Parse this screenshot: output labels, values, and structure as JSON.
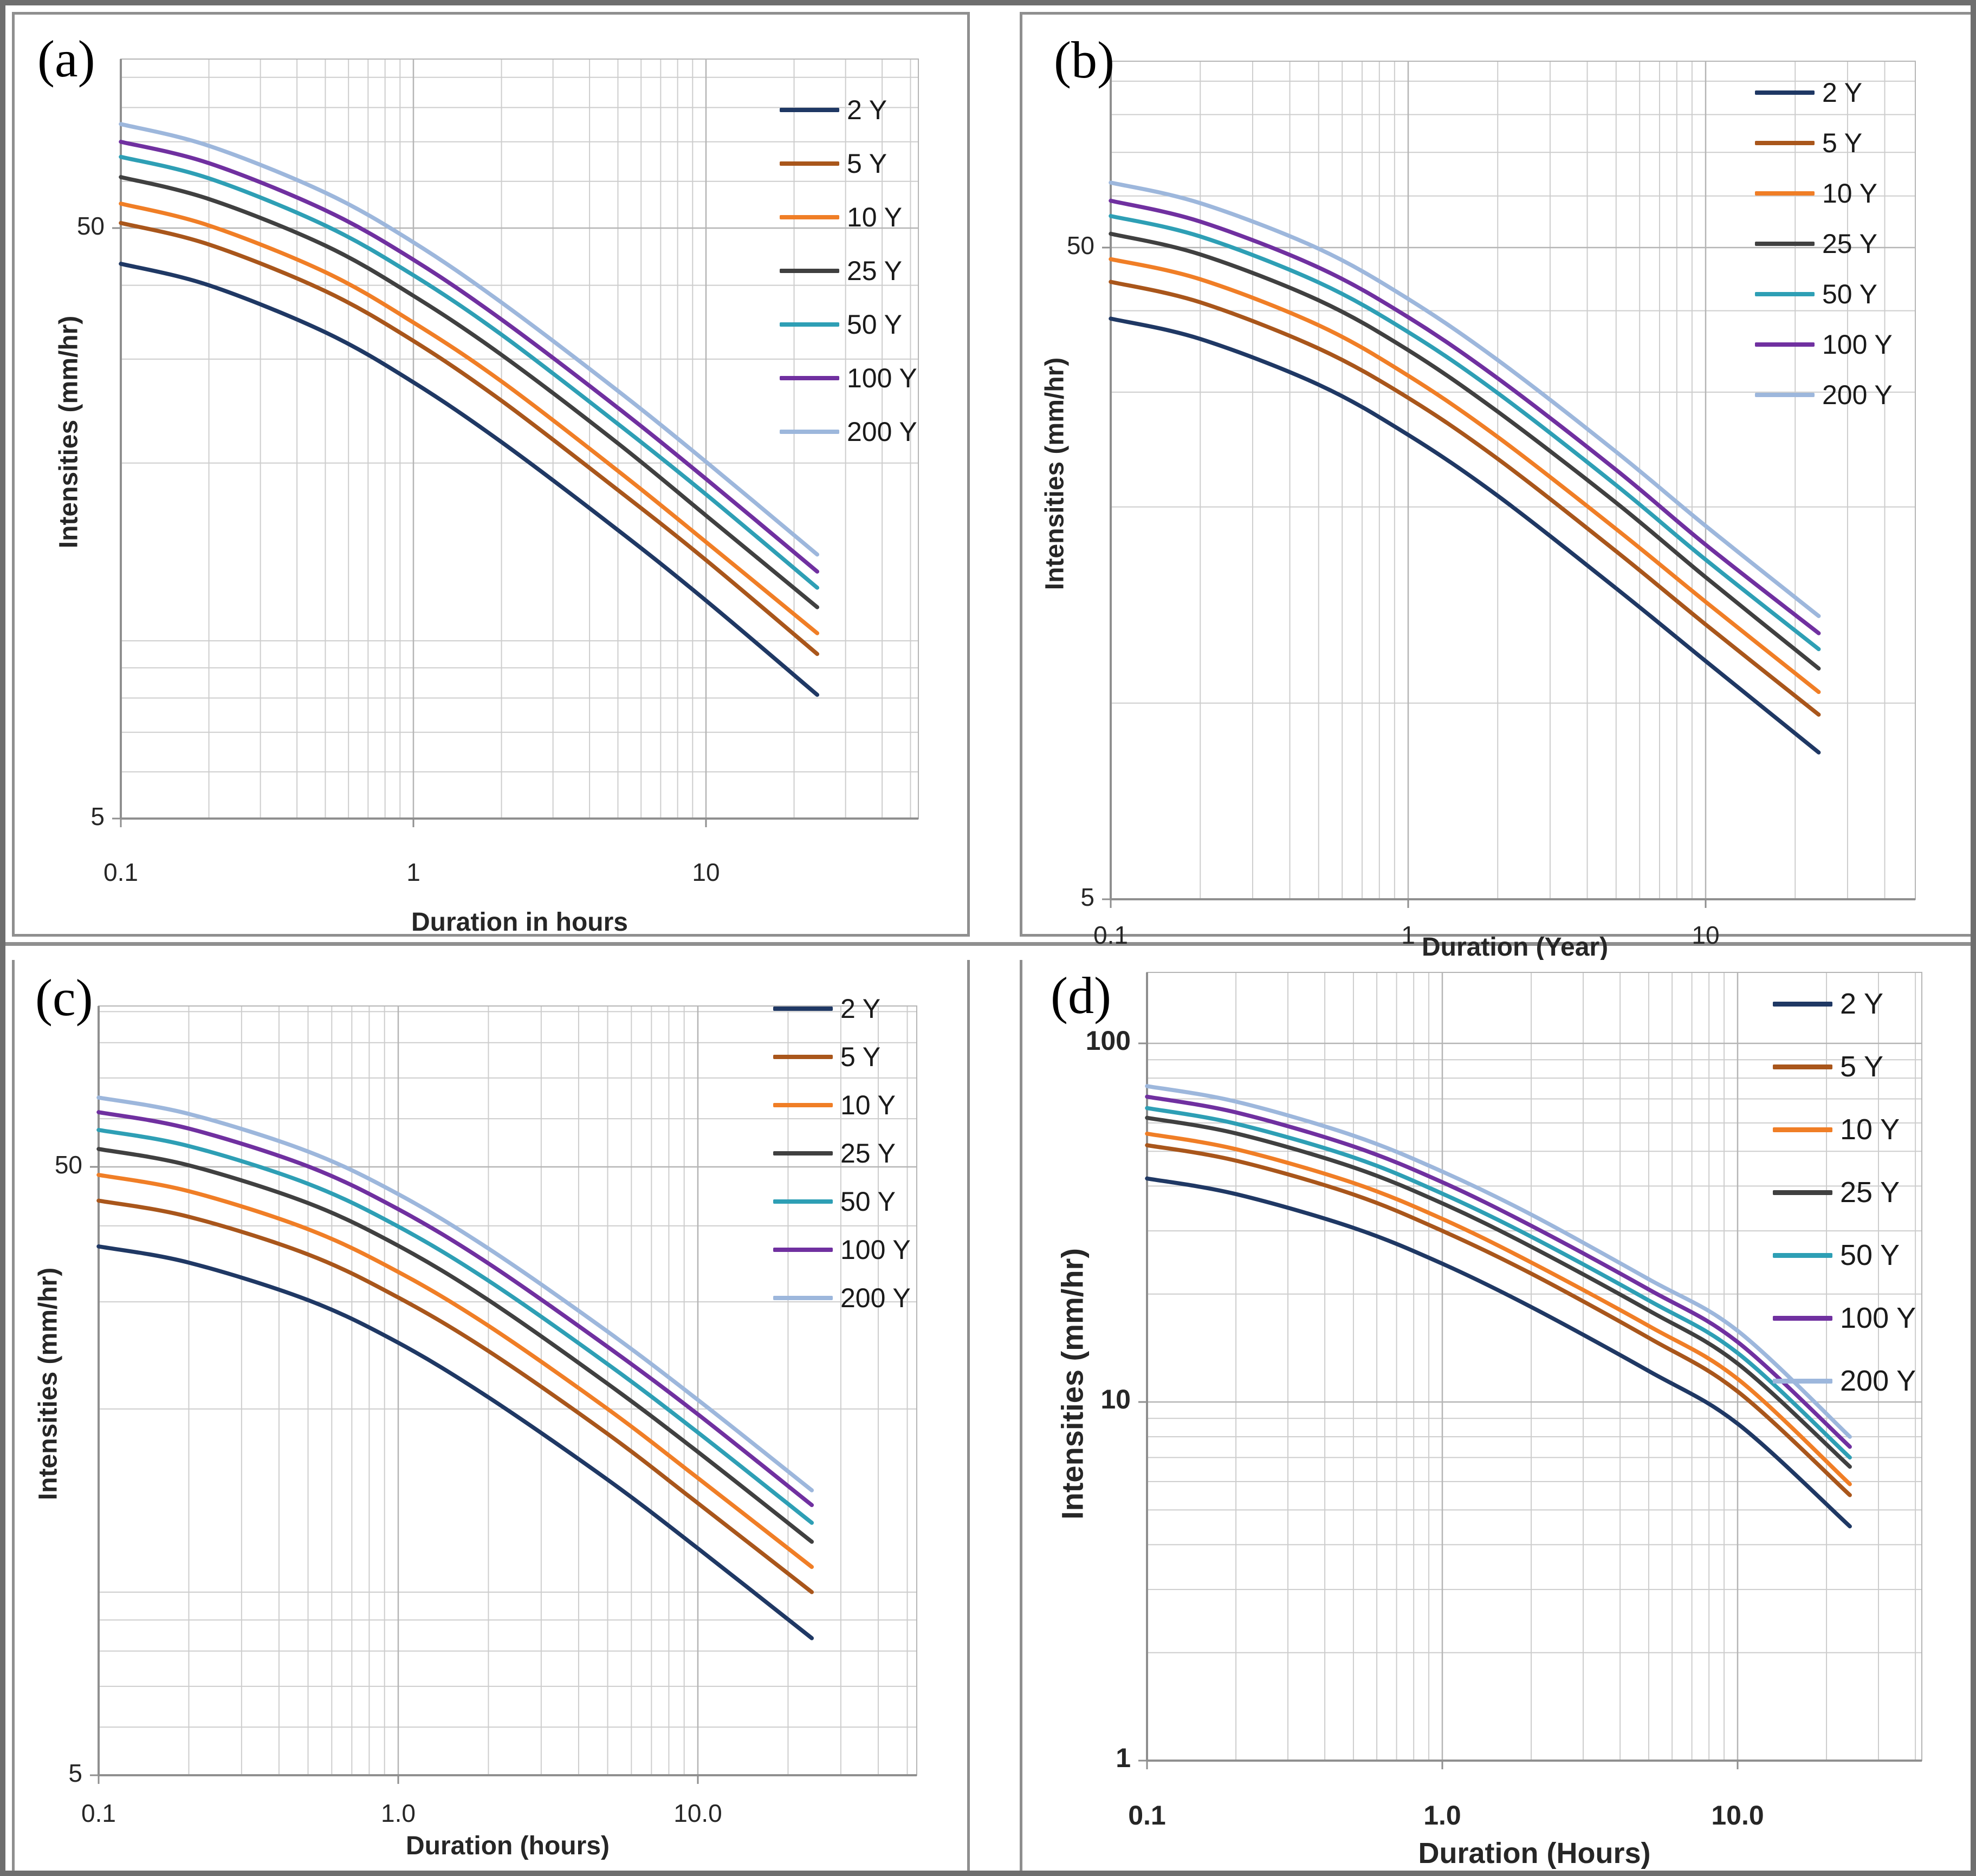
{
  "figure": {
    "background": "#ffffff",
    "frame_color": "#6e6e6e",
    "panel_border_color": "#8f8f8f",
    "grid_minor_color": "#cdcdcd",
    "grid_major_color": "#b5b5b5",
    "axis_color": "#8f8f8f",
    "text_color": "#262626"
  },
  "legend_labels": [
    "2 Y",
    "5 Y",
    "10 Y",
    "25 Y",
    "50 Y",
    "100 Y",
    "200 Y"
  ],
  "series_colors": [
    "#1F3864",
    "#A9561B",
    "#F07E26",
    "#404040",
    "#2E9FB5",
    "#7030A0",
    "#9DB7DC"
  ],
  "chart_data": [
    {
      "type": "line",
      "panel_label": "(a)",
      "xlabel": "Duration in hours",
      "ylabel": "Intensities (mm/hr)",
      "x_tick_labels": [
        "0.1",
        "1",
        "10"
      ],
      "x_tick_values": [
        0.1,
        1,
        10
      ],
      "y_tick_labels": [
        "5",
        "50"
      ],
      "y_tick_values": [
        5,
        50
      ],
      "xlim": [
        0.1,
        53
      ],
      "ylim": [
        5,
        97
      ],
      "log_x": true,
      "log_y": true,
      "grid": true,
      "legend_position": "top-right",
      "x": [
        0.1,
        0.2,
        0.5,
        1,
        2,
        5,
        10,
        24
      ],
      "series": [
        {
          "name": "2 Y",
          "color": "#1F3864",
          "values": [
            43.5,
            40.0,
            33.3,
            27.4,
            21.7,
            15.4,
            11.7,
            8.1
          ]
        },
        {
          "name": "5 Y",
          "color": "#A9561B",
          "values": [
            51.0,
            46.9,
            39.1,
            32.2,
            25.5,
            18.0,
            13.7,
            9.5
          ]
        },
        {
          "name": "10 Y",
          "color": "#F07E26",
          "values": [
            55.0,
            50.5,
            42.1,
            34.6,
            27.5,
            19.4,
            14.7,
            10.3
          ]
        },
        {
          "name": "25 Y",
          "color": "#404040",
          "values": [
            61.0,
            56.0,
            46.7,
            38.4,
            30.5,
            21.6,
            16.3,
            11.4
          ]
        },
        {
          "name": "50 Y",
          "color": "#2E9FB5",
          "values": [
            66.0,
            60.7,
            50.5,
            41.6,
            33.0,
            23.3,
            17.7,
            12.3
          ]
        },
        {
          "name": "100 Y",
          "color": "#7030A0",
          "values": [
            70.0,
            64.4,
            53.6,
            44.2,
            35.0,
            24.8,
            18.8,
            13.1
          ]
        },
        {
          "name": "200 Y",
          "color": "#9DB7DC",
          "values": [
            75.0,
            68.9,
            57.4,
            47.3,
            37.4,
            26.5,
            20.1,
            14.0
          ]
        }
      ]
    },
    {
      "type": "line",
      "panel_label": "(b)",
      "xlabel": "Duration (Year)",
      "ylabel": "Intensities (mm/hr)",
      "x_tick_labels": [
        "0.1",
        "1",
        "10"
      ],
      "x_tick_values": [
        0.1,
        1,
        10
      ],
      "y_tick_labels": [
        "5",
        "50"
      ],
      "y_tick_values": [
        5,
        50
      ],
      "xlim": [
        0.1,
        50
      ],
      "ylim": [
        5,
        96
      ],
      "log_x": true,
      "log_y": true,
      "grid": true,
      "legend_position": "top-right",
      "x": [
        0.1,
        0.2,
        0.5,
        1,
        2,
        5,
        10,
        24
      ],
      "series": [
        {
          "name": "2 Y",
          "color": "#1F3864",
          "values": [
            38.9,
            36.2,
            30.8,
            25.8,
            20.8,
            15.0,
            11.6,
            8.4
          ]
        },
        {
          "name": "5 Y",
          "color": "#A9561B",
          "values": [
            44.3,
            41.2,
            35.0,
            29.4,
            23.7,
            17.1,
            13.2,
            9.6
          ]
        },
        {
          "name": "10 Y",
          "color": "#F07E26",
          "values": [
            48.0,
            44.7,
            38.0,
            31.8,
            25.6,
            18.5,
            14.3,
            10.4
          ]
        },
        {
          "name": "25 Y",
          "color": "#404040",
          "values": [
            52.5,
            48.8,
            41.5,
            34.8,
            28.0,
            20.3,
            15.6,
            11.3
          ]
        },
        {
          "name": "50 Y",
          "color": "#2E9FB5",
          "values": [
            55.9,
            52.0,
            44.2,
            37.1,
            29.9,
            21.6,
            16.6,
            12.1
          ]
        },
        {
          "name": "100 Y",
          "color": "#7030A0",
          "values": [
            59.0,
            54.8,
            46.6,
            39.1,
            31.5,
            22.8,
            17.5,
            12.8
          ]
        },
        {
          "name": "200 Y",
          "color": "#9DB7DC",
          "values": [
            62.9,
            58.5,
            49.8,
            41.7,
            33.6,
            24.3,
            18.7,
            13.6
          ]
        }
      ]
    },
    {
      "type": "line",
      "panel_label": "(c)",
      "xlabel": "Duration (hours)",
      "ylabel": "Intensities (mm/hr)",
      "x_tick_labels": [
        "0.1",
        "1.0",
        "10.0"
      ],
      "x_tick_values": [
        0.1,
        1,
        10
      ],
      "y_tick_labels": [
        "5",
        "50"
      ],
      "y_tick_values": [
        5,
        50
      ],
      "xlim": [
        0.1,
        53
      ],
      "ylim": [
        5,
        92
      ],
      "log_x": true,
      "log_y": true,
      "grid": true,
      "legend_position": "top-right",
      "x": [
        0.1,
        0.2,
        0.5,
        1,
        2,
        5,
        10,
        24
      ],
      "series": [
        {
          "name": "2 Y",
          "color": "#1F3864",
          "values": [
            37.0,
            34.8,
            30.2,
            25.7,
            20.9,
            15.3,
            11.8,
            8.4
          ]
        },
        {
          "name": "5 Y",
          "color": "#A9561B",
          "values": [
            44.0,
            41.4,
            35.9,
            30.5,
            24.9,
            18.2,
            14.0,
            10.0
          ]
        },
        {
          "name": "10 Y",
          "color": "#F07E26",
          "values": [
            48.5,
            45.6,
            39.5,
            33.6,
            27.4,
            20.0,
            15.4,
            11.0
          ]
        },
        {
          "name": "25 Y",
          "color": "#404040",
          "values": [
            53.5,
            50.3,
            43.6,
            37.1,
            30.2,
            22.0,
            17.0,
            12.1
          ]
        },
        {
          "name": "50 Y",
          "color": "#2E9FB5",
          "values": [
            57.5,
            54.1,
            46.9,
            39.9,
            32.5,
            23.7,
            18.3,
            13.0
          ]
        },
        {
          "name": "100 Y",
          "color": "#7030A0",
          "values": [
            61.5,
            57.8,
            50.1,
            42.6,
            34.7,
            25.3,
            19.6,
            13.9
          ]
        },
        {
          "name": "200 Y",
          "color": "#9DB7DC",
          "values": [
            65.0,
            61.1,
            53.0,
            45.1,
            36.7,
            26.8,
            20.7,
            14.7
          ]
        }
      ]
    },
    {
      "type": "line",
      "panel_label": "(d)",
      "xlabel": "Duration (Hours)",
      "ylabel": "Intensities (mm/hr)",
      "x_tick_labels": [
        "0.1",
        "1.0",
        "10.0"
      ],
      "x_tick_values": [
        0.1,
        1,
        10
      ],
      "y_tick_labels": [
        "1",
        "10",
        "100"
      ],
      "y_tick_values": [
        1,
        10,
        100
      ],
      "xlim": [
        0.1,
        42
      ],
      "ylim": [
        1,
        155
      ],
      "log_x": true,
      "log_y": true,
      "grid": true,
      "legend_position": "top-right",
      "x": [
        0.1,
        0.2,
        0.5,
        1,
        2,
        5,
        10,
        24
      ],
      "series": [
        {
          "name": "2 Y",
          "color": "#1F3864",
          "values": [
            42.0,
            38.0,
            30.6,
            24.3,
            18.4,
            12.2,
            8.7,
            4.5
          ]
        },
        {
          "name": "5 Y",
          "color": "#A9561B",
          "values": [
            52.0,
            47.1,
            37.9,
            30.0,
            22.8,
            15.1,
            10.7,
            5.5
          ]
        },
        {
          "name": "10 Y",
          "color": "#F07E26",
          "values": [
            56.0,
            50.7,
            40.8,
            32.4,
            24.5,
            16.3,
            11.6,
            5.9
          ]
        },
        {
          "name": "25 Y",
          "color": "#404040",
          "values": [
            62.0,
            56.1,
            45.1,
            35.8,
            27.1,
            18.0,
            12.8,
            6.6
          ]
        },
        {
          "name": "50 Y",
          "color": "#2E9FB5",
          "values": [
            66.0,
            59.7,
            48.1,
            38.1,
            28.9,
            19.2,
            13.7,
            7.0
          ]
        },
        {
          "name": "100 Y",
          "color": "#7030A0",
          "values": [
            71.0,
            64.2,
            51.6,
            41.0,
            31.0,
            20.6,
            14.7,
            7.5
          ]
        },
        {
          "name": "200 Y",
          "color": "#9DB7DC",
          "values": [
            76.0,
            68.8,
            55.3,
            43.9,
            33.3,
            22.0,
            15.8,
            8.0
          ]
        }
      ]
    }
  ]
}
